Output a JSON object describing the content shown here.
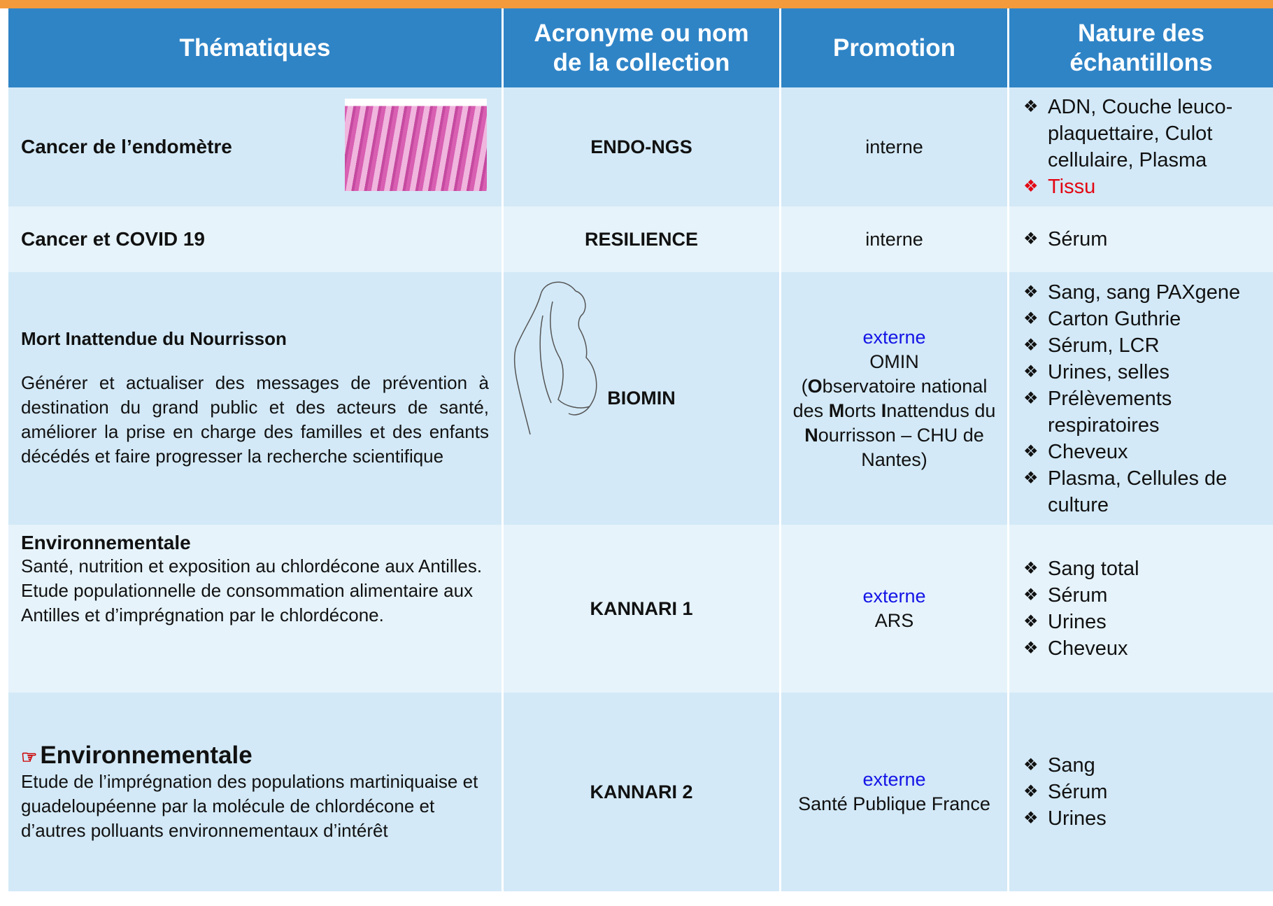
{
  "header": {
    "columns": [
      "Thématiques",
      "Acronyme ou nom de la collection",
      "Promotion",
      "Nature des échantillons"
    ]
  },
  "rows": [
    {
      "theme_title": "Cancer de l’endomètre",
      "acronym": "ENDO-NGS",
      "promotion": {
        "detail": "interne"
      },
      "samples": [
        {
          "text": "ADN, Couche leuco-plaquettaire, Culot cellulaire, Plasma"
        },
        {
          "text": "Tissu",
          "color": "#e30613"
        }
      ]
    },
    {
      "theme_title": "Cancer et COVID 19",
      "acronym": "RESILIENCE",
      "promotion": {
        "detail": "interne"
      },
      "samples": [
        {
          "text": "Sérum"
        }
      ]
    },
    {
      "theme_title": "Mort Inattendue du Nourrisson",
      "theme_description": "Générer et actualiser des messages de prévention à destination du grand public et des acteurs de santé, améliorer la prise en charge des familles et des enfants décédés et faire progresser la recherche scientifique",
      "acronym": "BIOMIN",
      "promotion": {
        "label": "externe",
        "detail": "OMIN",
        "note": [
          {
            "text": "("
          },
          {
            "text": "O",
            "bold": true
          },
          {
            "text": "bservatoire national des "
          },
          {
            "text": "M",
            "bold": true
          },
          {
            "text": "orts "
          },
          {
            "text": "I",
            "bold": true
          },
          {
            "text": "nattendus du "
          },
          {
            "text": "N",
            "bold": true
          },
          {
            "text": "ourrisson – CHU de Nantes)"
          }
        ]
      },
      "samples": [
        {
          "text": "Sang, sang PAXgene"
        },
        {
          "text": "Carton Guthrie"
        },
        {
          "text": "Sérum, LCR"
        },
        {
          "text": "Urines, selles"
        },
        {
          "text": "Prélèvements respiratoires"
        },
        {
          "text": "Cheveux"
        },
        {
          "text": "Plasma, Cellules de culture"
        }
      ]
    },
    {
      "theme_title": "Environnementale",
      "theme_description": "Santé, nutrition et exposition au chlordécone aux Antilles. Etude populationnelle de consommation alimentaire aux Antilles et d’imprégnation par le chlordécone.",
      "acronym": "KANNARI 1",
      "promotion": {
        "label": "externe",
        "detail": "ARS"
      },
      "samples": [
        {
          "text": "Sang total"
        },
        {
          "text": "Sérum"
        },
        {
          "text": "Urines"
        },
        {
          "text": "Cheveux"
        }
      ]
    },
    {
      "theme_title": "Environnementale",
      "theme_description": "Etude de l’imprégnation des populations martiniquaise et guadeloupéenne par la molécule de chlordécone et d’autres polluants environnementaux d’intérêt",
      "acronym": "KANNARI  2",
      "promotion": {
        "label": "externe",
        "detail": "Santé Publique France"
      },
      "samples": [
        {
          "text": "Sang"
        },
        {
          "text": "Sérum"
        },
        {
          "text": "Urines"
        }
      ]
    }
  ]
}
